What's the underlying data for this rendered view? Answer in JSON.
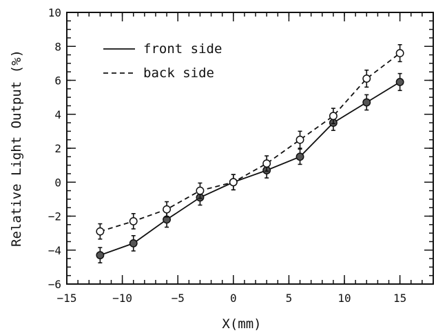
{
  "chart_data": {
    "type": "line",
    "xlabel": "X(mm)",
    "ylabel": "Relative Light Output (%)",
    "xlim": [
      -15,
      18
    ],
    "ylim": [
      -6,
      10
    ],
    "xticks_major": [
      -15,
      -10,
      -5,
      0,
      5,
      10,
      15
    ],
    "xticks_minor_step": 1,
    "yticks_major": [
      -6,
      -4,
      -2,
      0,
      2,
      4,
      6,
      8,
      10
    ],
    "yticks_minor_step": 0.5,
    "grid": false,
    "legend_position": "top-left",
    "series": [
      {
        "name": "front side",
        "line_style": "solid",
        "marker": "filled-circle",
        "color": "#111111",
        "x": [
          -12,
          -9,
          -6,
          -3,
          0,
          3,
          6,
          9,
          12,
          15
        ],
        "y": [
          -4.3,
          -3.6,
          -2.2,
          -0.9,
          0.0,
          0.7,
          1.5,
          3.5,
          4.7,
          5.9
        ],
        "err": [
          0.45,
          0.45,
          0.45,
          0.45,
          0.45,
          0.45,
          0.45,
          0.45,
          0.45,
          0.5
        ]
      },
      {
        "name": "back side",
        "line_style": "dashed",
        "marker": "open-circle",
        "color": "#111111",
        "x": [
          -12,
          -9,
          -6,
          -3,
          0,
          3,
          6,
          9,
          12,
          15
        ],
        "y": [
          -2.9,
          -2.3,
          -1.6,
          -0.5,
          0.0,
          1.1,
          2.5,
          3.9,
          6.1,
          7.6
        ],
        "err": [
          0.45,
          0.45,
          0.45,
          0.45,
          0.45,
          0.45,
          0.5,
          0.45,
          0.5,
          0.5
        ]
      }
    ]
  }
}
